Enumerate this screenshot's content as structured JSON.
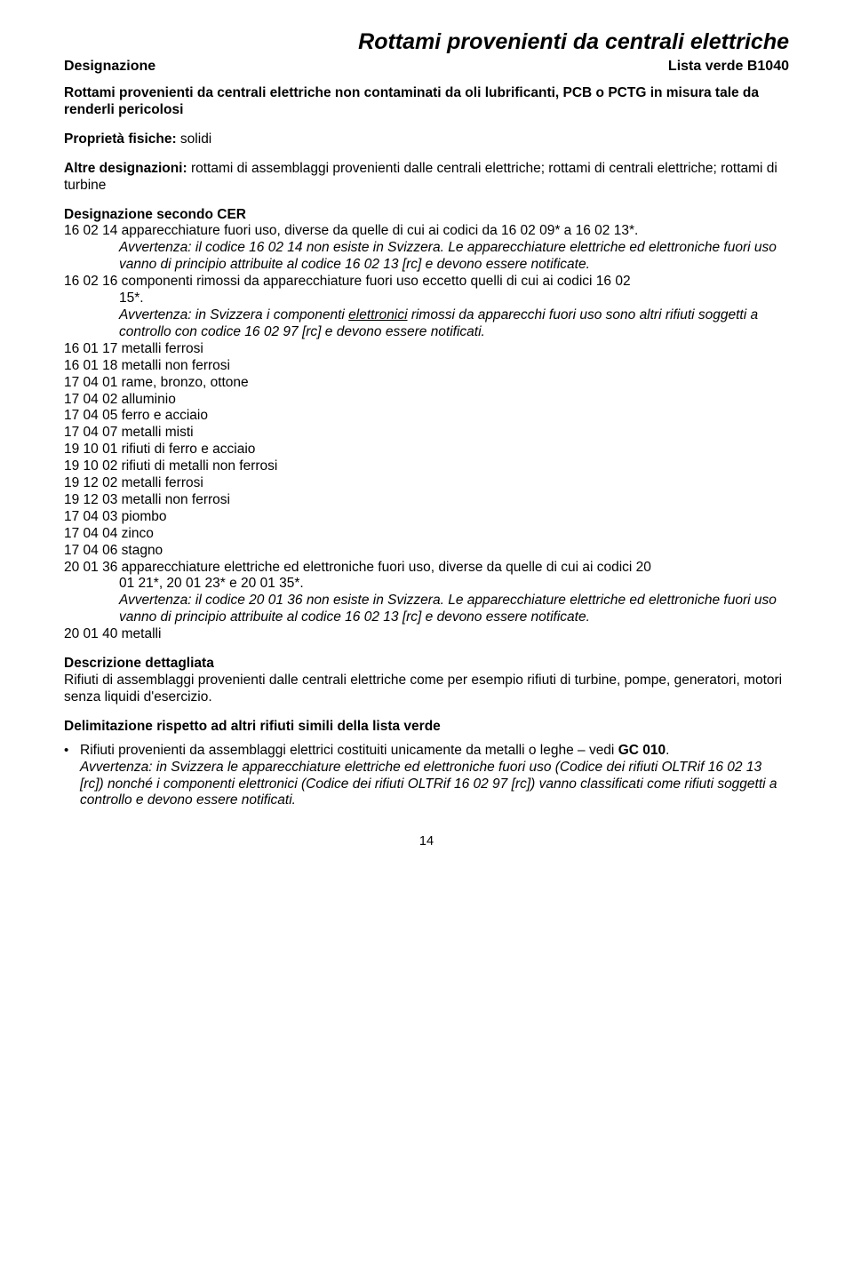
{
  "header": {
    "main_title": "Rottami provenienti da centrali elettriche",
    "designazione_label": "Designazione",
    "lista_verde": "Lista verde B1040"
  },
  "lead": "Rottami provenienti da centrali elettriche non contaminati da oli lubrificanti, PCB o PCTG in misura tale da renderli pericolosi",
  "prop_fisiche": {
    "label": "Proprietà fisiche:",
    "value": " solidi"
  },
  "altre_des": {
    "label": "Altre designazioni:",
    "value": " rottami di assemblaggi provenienti dalle centrali elettriche; rottami di centrali elettriche; rottami di turbine"
  },
  "cer": {
    "header": "Designazione secondo CER",
    "line_160214": "16 02 14 apparecchiature fuori uso, diverse da quelle di cui ai codici da 16 02 09* a 16 02 13*.",
    "note_160214": "Avvertenza: il codice 16 02 14 non esiste in Svizzera. Le apparecchiature elettriche ed elettroniche fuori uso vanno di principio attribuite al codice 16 02 13 [rc] e devono essere notificate.",
    "line_160216_a": "16 02 16 componenti rimossi da apparecchiature fuori uso eccetto quelli di cui ai codici 16 02",
    "line_160216_b": "15*.",
    "note_160216_pre": "Avvertenza: in Svizzera i componenti ",
    "note_160216_u": "elettronici",
    "note_160216_post": " rimossi da apparecchi fuori uso sono altri rifiuti soggetti a controllo con codice 16 02 97 [rc] e devono essere notificati.",
    "simple": [
      "16 01 17 metalli ferrosi",
      "16 01 18 metalli non ferrosi",
      "17 04 01 rame, bronzo, ottone",
      "17 04 02 alluminio",
      "17 04 05 ferro e acciaio",
      "17 04 07 metalli misti",
      "19 10 01 rifiuti di ferro e acciaio",
      "19 10 02 rifiuti di metalli non ferrosi",
      "19 12 02 metalli ferrosi",
      "19 12 03 metalli non ferrosi",
      "17 04 03 piombo",
      "17 04 04 zinco",
      "17 04 06 stagno"
    ],
    "line_200136_a": "20 01 36 apparecchiature elettriche ed elettroniche fuori uso, diverse da quelle di cui ai codici 20",
    "line_200136_b": "01 21*, 20 01 23* e 20 01 35*.",
    "note_200136": "Avvertenza: il codice 20 01 36 non esiste in Svizzera. Le apparecchiature elettriche ed elettroniche fuori uso vanno di principio attribuite al codice 16 02 13 [rc] e devono essere notificate.",
    "line_200140": "20 01 40 metalli"
  },
  "desc": {
    "header": "Descrizione dettagliata",
    "body": "Rifiuti di assemblaggi provenienti dalle centrali elettriche come per esempio rifiuti di turbine, pompe, generatori, motori senza liquidi d'esercizio."
  },
  "delim": {
    "header": "Delimitazione rispetto ad altri rifiuti simili della lista verde",
    "bullet_pre": "Rifiuti provenienti da assemblaggi elettrici costituiti unicamente da metalli o leghe – vedi ",
    "bullet_bold": "GC 010",
    "bullet_post": ".",
    "note": "Avvertenza: in Svizzera le apparecchiature elettriche ed elettroniche fuori uso (Codice dei rifiuti OLTRif 16 02 13 [rc]) nonché i componenti elettronici (Codice dei rifiuti OLTRif 16 02 97 [rc]) vanno classificati come rifiuti soggetti a controllo e devono essere notificati."
  },
  "page_number": "14"
}
